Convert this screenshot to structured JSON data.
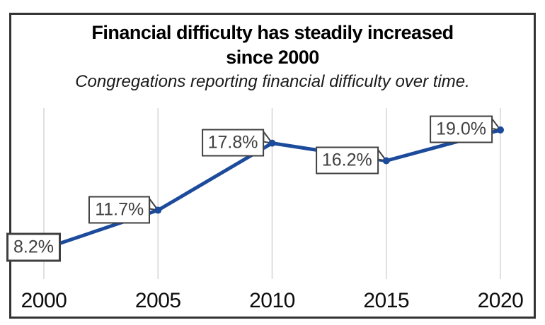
{
  "header": {
    "title_line1": "Financial difficulty has steadily increased",
    "title_line2": "since 2000",
    "subtitle": "Congregations reporting financial difficulty over time."
  },
  "colors": {
    "line": "#1C4B9C",
    "point": "#1C4B9C",
    "gridline": "#D6D6D6",
    "figure_border": "#333333",
    "label_border": "#3F3F3F",
    "label_text": "#3F3F3F",
    "axis_text": "#0D0D0D",
    "title_text": "#000000",
    "label_fill": "#FFFFFF",
    "background": "#FFFFFF"
  },
  "chart_data": {
    "type": "line",
    "title": "Financial difficulty has steadily increased since 2000",
    "subtitle": "Congregations reporting financial difficulty over time.",
    "x": [
      2000,
      2005,
      2010,
      2015,
      2020
    ],
    "categories": [
      "2000",
      "2005",
      "2010",
      "2015",
      "2020"
    ],
    "series": [
      {
        "name": "Congregations reporting financial difficulty",
        "values": [
          8.2,
          11.7,
          17.8,
          16.2,
          19.0
        ]
      }
    ],
    "point_labels": [
      "8.2%",
      "11.7%",
      "17.8%",
      "16.2%",
      "19.0%"
    ],
    "xlabel": "",
    "ylabel": "",
    "xlim": [
      2000,
      2020
    ],
    "ylim": [
      5,
      21
    ],
    "grid": "vertical-only",
    "legend": "none",
    "data_label_style": "callout-boxes",
    "marker": "circle"
  }
}
